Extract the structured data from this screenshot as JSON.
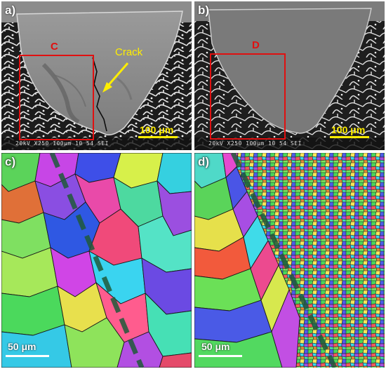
{
  "panels": {
    "a": {
      "letter": "a)",
      "roi_label": "C",
      "crack_label": "Crack",
      "scale_label": "100 μm",
      "footer": "20kV X250 100μm 10 54 SEI"
    },
    "b": {
      "letter": "b)",
      "roi_label": "D",
      "scale_label": "100 μm",
      "footer": "20kV X250 100μm 10 54 SEI"
    },
    "c": {
      "letter": "c)",
      "scale_label": "50 μm"
    },
    "d": {
      "letter": "d)",
      "scale_label": "50 μm"
    }
  },
  "colors": {
    "roi": "#e01010",
    "scale_yellow": "#ffee00",
    "boundary_dash": "#1f5a3a"
  }
}
